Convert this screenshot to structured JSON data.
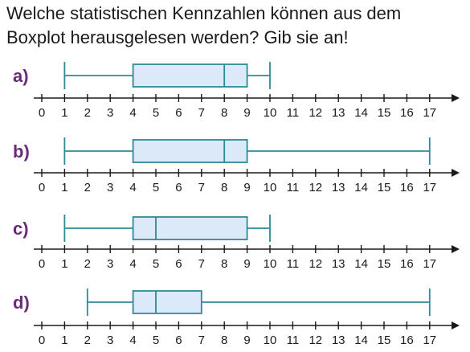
{
  "question": {
    "line1": "Welche statistischen Kennzahlen können aus dem",
    "line2": "Boxplot herausgelesen werden? Gib sie an!"
  },
  "colors": {
    "box_fill": "#dbe9f8",
    "box_stroke": "#2f8a94",
    "label": "#6b2a7a",
    "axis": "#1a1a1a"
  },
  "chart_data": [
    {
      "type": "boxplot",
      "label": "a)",
      "min": 1,
      "q1": 4,
      "median": 8,
      "q3": 9,
      "max": 10,
      "xlim": [
        0,
        17
      ],
      "ticks": [
        0,
        1,
        2,
        3,
        4,
        5,
        6,
        7,
        8,
        9,
        10,
        11,
        12,
        13,
        14,
        15,
        16,
        17
      ]
    },
    {
      "type": "boxplot",
      "label": "b)",
      "min": 1,
      "q1": 4,
      "median": 8,
      "q3": 9,
      "max": 17,
      "xlim": [
        0,
        17
      ],
      "ticks": [
        0,
        1,
        2,
        3,
        4,
        5,
        6,
        7,
        8,
        9,
        10,
        11,
        12,
        13,
        14,
        15,
        16,
        17
      ]
    },
    {
      "type": "boxplot",
      "label": "c)",
      "min": 1,
      "q1": 4,
      "median": 5,
      "q3": 9,
      "max": 10,
      "xlim": [
        0,
        17
      ],
      "ticks": [
        0,
        1,
        2,
        3,
        4,
        5,
        6,
        7,
        8,
        9,
        10,
        11,
        12,
        13,
        14,
        15,
        16,
        17
      ]
    },
    {
      "type": "boxplot",
      "label": "d)",
      "min": 2,
      "q1": 4,
      "median": 5,
      "q3": 7,
      "max": 17,
      "xlim": [
        0,
        17
      ],
      "ticks": [
        0,
        1,
        2,
        3,
        4,
        5,
        6,
        7,
        8,
        9,
        10,
        11,
        12,
        13,
        14,
        15,
        16,
        17
      ]
    }
  ]
}
